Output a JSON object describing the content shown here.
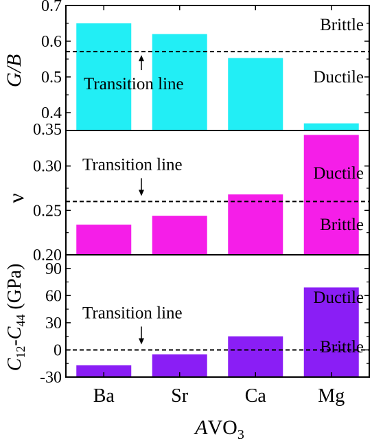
{
  "chart_data": {
    "type": "bar",
    "categories": [
      "Ba",
      "Sr",
      "Ca",
      "Mg"
    ],
    "xlabel_italic": "A",
    "xlabel_rest": "VO",
    "xlabel_sub": "3",
    "panels": [
      {
        "ylabel": "G/B",
        "ylim": [
          0.35,
          0.7
        ],
        "yticks": [
          "0.35",
          "0.4",
          "0.5",
          "0.6",
          "0.7"
        ],
        "ytick_values": [
          0.35,
          0.4,
          0.5,
          0.6,
          0.7
        ],
        "values": [
          0.65,
          0.62,
          0.553,
          0.37
        ],
        "color": "#22eef5",
        "threshold": 0.571,
        "upper_label": "Brittle",
        "lower_label": "Ductile",
        "transition_label": "Transition line",
        "arrow": "up"
      },
      {
        "ylabel": "ν",
        "ylim": [
          0.2,
          0.34
        ],
        "yticks": [
          "0.20",
          "0.25",
          "0.30"
        ],
        "ytick_values": [
          0.2,
          0.25,
          0.3
        ],
        "values": [
          0.234,
          0.244,
          0.268,
          0.335
        ],
        "color": "#f51ee8",
        "threshold": 0.26,
        "upper_label": "Ductile",
        "lower_label": "Brittle",
        "transition_label": "Transition line",
        "arrow": "down"
      },
      {
        "ylabel": "C12-C44 (GPa)",
        "ylim": [
          -30,
          105
        ],
        "yticks": [
          "-30",
          "0",
          "30",
          "60",
          "90"
        ],
        "ytick_values": [
          -30,
          0,
          30,
          60,
          90
        ],
        "values": [
          -17,
          -5,
          15,
          69
        ],
        "color": "#8a1ef5",
        "threshold": 0,
        "upper_label": "Ductile",
        "lower_label": "Brittle",
        "transition_label": "Transition line",
        "arrow": "down"
      }
    ]
  }
}
